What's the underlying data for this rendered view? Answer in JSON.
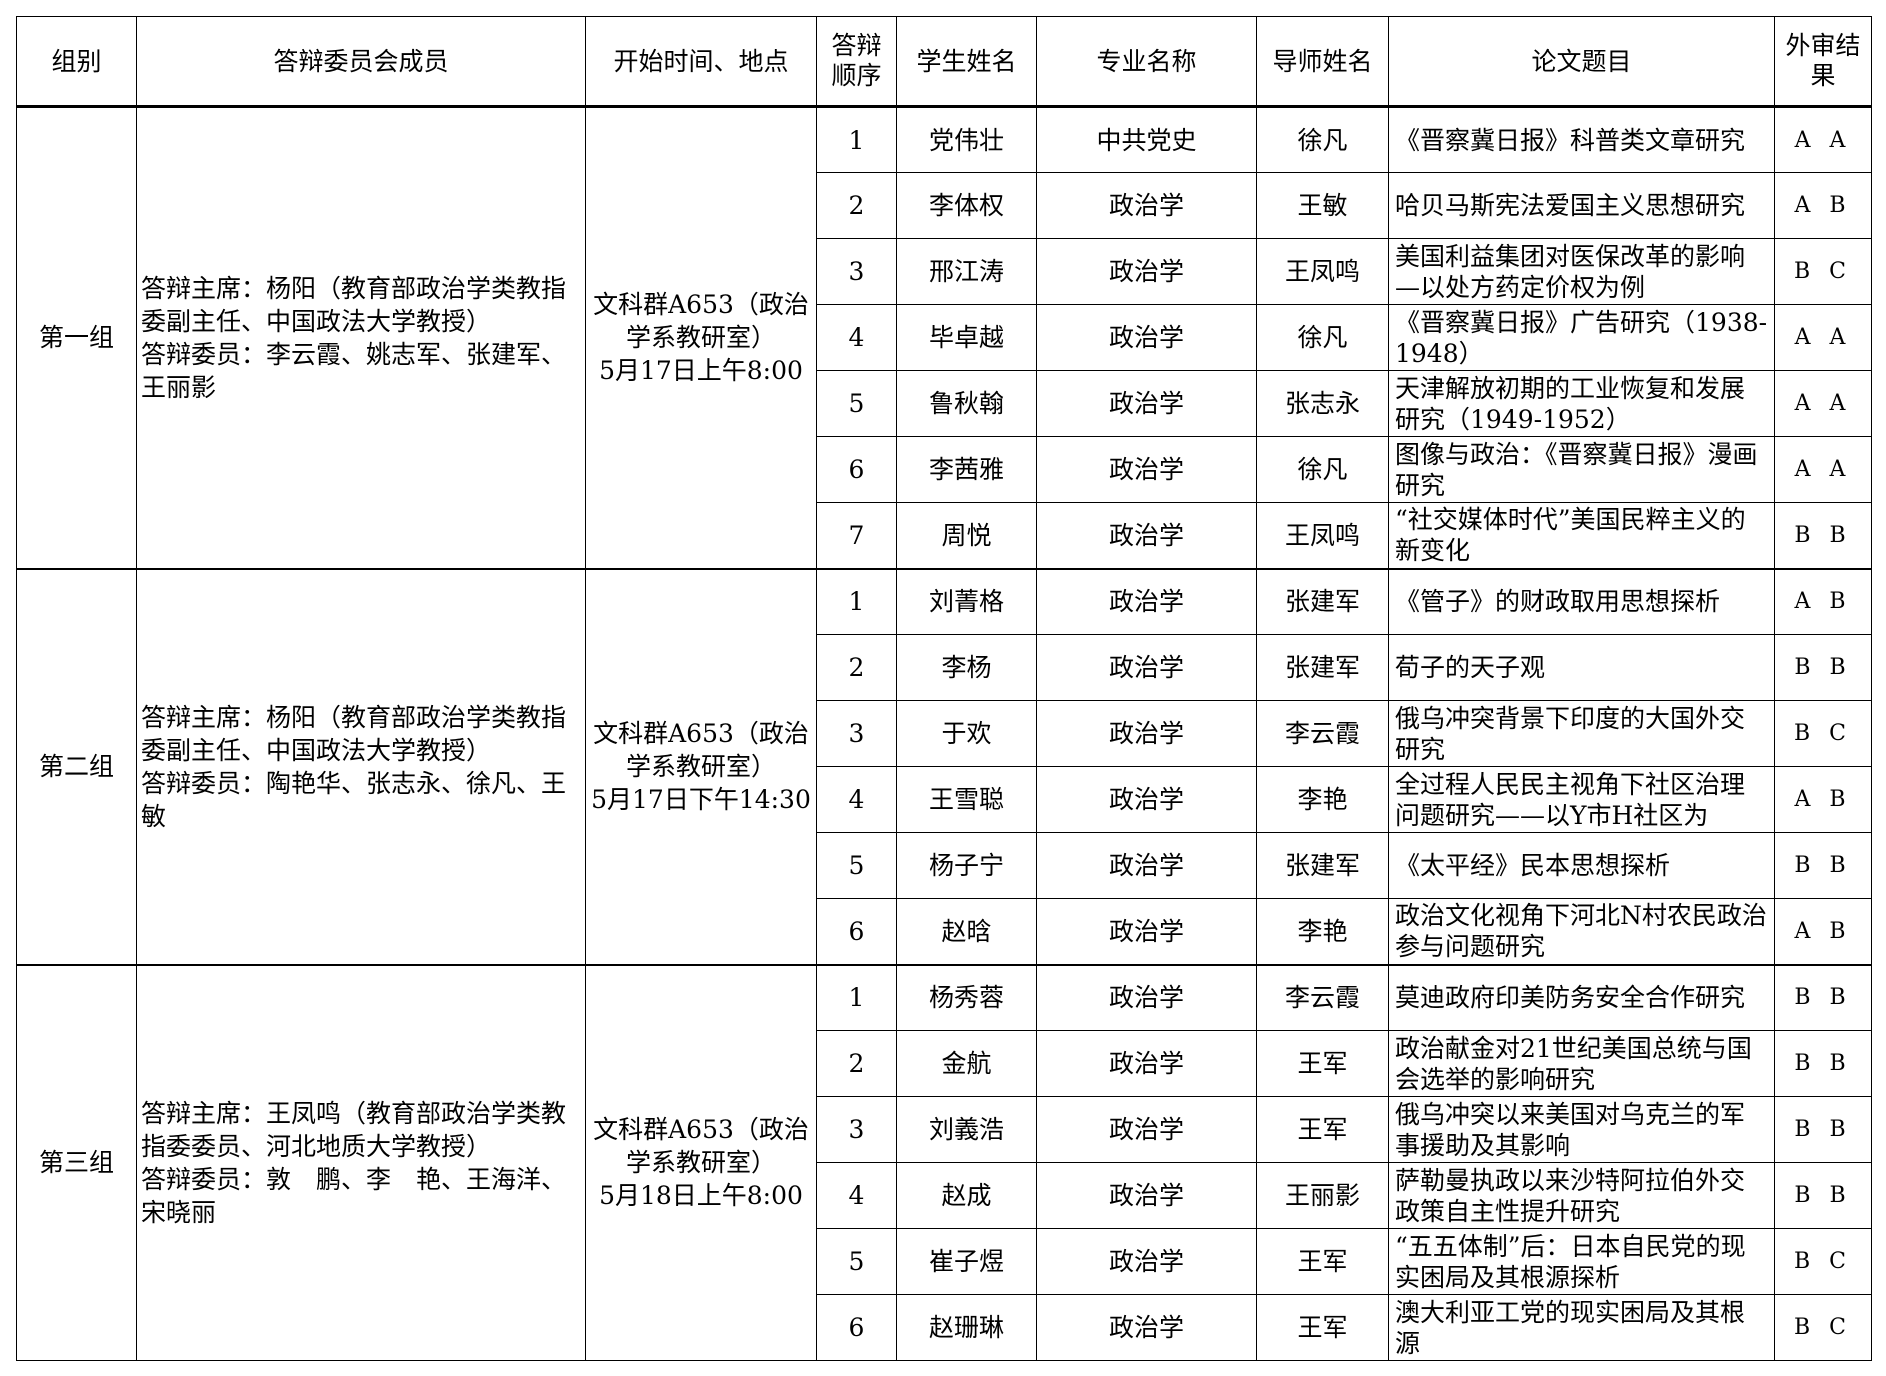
{
  "headers": [
    "组别",
    "答辩委员会成员",
    "开始时间、地点",
    "答辩顺序",
    "学生姓名",
    "专业名称",
    "导师姓名",
    "论文题目",
    "外审结果"
  ],
  "groups": [
    {
      "name": "第一组",
      "chair": "答辩主席：杨阳（教育部政治学类教指委副主任、中国政法大学教授）",
      "members": "答辩委员：李云霞、姚志军、张建军、王丽影",
      "location": "文科群A653（政治学系教研室）",
      "time": "5月17日上午8:00",
      "rows": [
        {
          "order": "1",
          "student": "党伟壮",
          "major": "中共党史",
          "advisor": "徐凡",
          "title": "《晋察冀日报》科普类文章研究",
          "result": "A A"
        },
        {
          "order": "2",
          "student": "李体权",
          "major": "政治学",
          "advisor": "王敏",
          "title": "哈贝马斯宪法爱国主义思想研究",
          "result": "A B"
        },
        {
          "order": "3",
          "student": "邢江涛",
          "major": "政治学",
          "advisor": "王凤鸣",
          "title": "美国利益集团对医保改革的影响—以处方药定价权为例",
          "result": "B C"
        },
        {
          "order": "4",
          "student": "毕卓越",
          "major": "政治学",
          "advisor": "徐凡",
          "title": "《晋察冀日报》广告研究（1938-1948）",
          "result": "A A"
        },
        {
          "order": "5",
          "student": "鲁秋翰",
          "major": "政治学",
          "advisor": "张志永",
          "title": "天津解放初期的工业恢复和发展研究（1949-1952）",
          "result": "A A"
        },
        {
          "order": "6",
          "student": "李茜雅",
          "major": "政治学",
          "advisor": "徐凡",
          "title": "图像与政治：《晋察冀日报》漫画研究",
          "result": "A A"
        },
        {
          "order": "7",
          "student": "周悦",
          "major": "政治学",
          "advisor": "王凤鸣",
          "title": "“社交媒体时代”美国民粹主义的新变化",
          "result": "B B"
        }
      ]
    },
    {
      "name": "第二组",
      "chair": "答辩主席：杨阳（教育部政治学类教指委副主任、中国政法大学教授）",
      "members": "答辩委员：陶艳华、张志永、徐凡、王　敏",
      "location": "文科群A653（政治学系教研室）",
      "time": "5月17日下午14:30",
      "rows": [
        {
          "order": "1",
          "student": "刘菁格",
          "major": "政治学",
          "advisor": "张建军",
          "title": "《管子》的财政取用思想探析",
          "result": "A B"
        },
        {
          "order": "2",
          "student": "李杨",
          "major": "政治学",
          "advisor": "张建军",
          "title": "荀子的天子观",
          "result": "B B"
        },
        {
          "order": "3",
          "student": "于欢",
          "major": "政治学",
          "advisor": "李云霞",
          "title": "俄乌冲突背景下印度的大国外交研究",
          "result": "B C"
        },
        {
          "order": "4",
          "student": "王雪聪",
          "major": "政治学",
          "advisor": "李艳",
          "title": "全过程人民民主视角下社区治理问题研究——以Y市H社区为",
          "result": "A B"
        },
        {
          "order": "5",
          "student": "杨子宁",
          "major": "政治学",
          "advisor": "张建军",
          "title": "《太平经》民本思想探析",
          "result": "B B"
        },
        {
          "order": "6",
          "student": "赵晗",
          "major": "政治学",
          "advisor": "李艳",
          "title": "政治文化视角下河北N村农民政治参与问题研究",
          "result": "A B"
        }
      ]
    },
    {
      "name": "第三组",
      "chair": "答辩主席：王凤鸣（教育部政治学类教指委委员、河北地质大学教授）",
      "members": "答辩委员：敦　鹏、李　艳、王海洋、宋晓丽",
      "location": "文科群A653（政治学系教研室）",
      "time": "5月18日上午8:00",
      "rows": [
        {
          "order": "1",
          "student": "杨秀蓉",
          "major": "政治学",
          "advisor": "李云霞",
          "title": "莫迪政府印美防务安全合作研究",
          "result": "B B"
        },
        {
          "order": "2",
          "student": "金航",
          "major": "政治学",
          "advisor": "王军",
          "title": "政治献金对21世纪美国总统与国会选举的影响研究",
          "result": "B B"
        },
        {
          "order": "3",
          "student": "刘義浩",
          "major": "政治学",
          "advisor": "王军",
          "title": "俄乌冲突以来美国对乌克兰的军事援助及其影响",
          "result": "B B"
        },
        {
          "order": "4",
          "student": "赵成",
          "major": "政治学",
          "advisor": "王丽影",
          "title": "萨勒曼执政以来沙特阿拉伯外交政策自主性提升研究",
          "result": "B B"
        },
        {
          "order": "5",
          "student": "崔子煜",
          "major": "政治学",
          "advisor": "王军",
          "title": "“五五体制”后：日本自民党的现实困局及其根源探析",
          "result": "B C"
        },
        {
          "order": "6",
          "student": "赵珊琳",
          "major": "政治学",
          "advisor": "王军",
          "title": "澳大利亚工党的现实困局及其根源",
          "result": "B C"
        }
      ]
    }
  ]
}
